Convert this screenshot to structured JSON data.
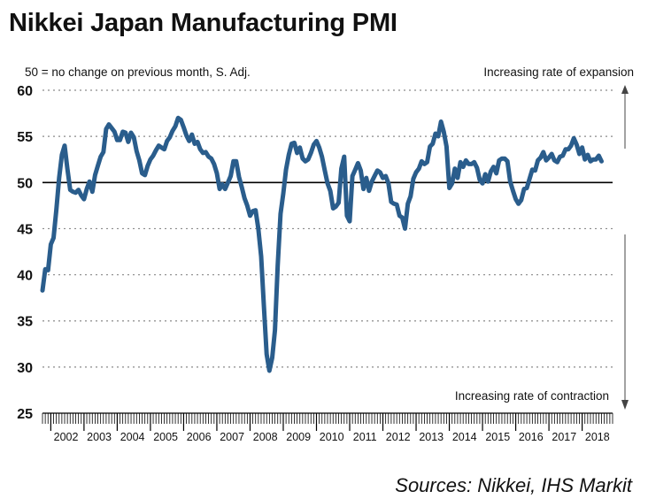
{
  "title": "Nikkei Japan Manufacturing PMI",
  "source": "Sources: Nikkei, IHS Markit",
  "colors": {
    "series": "#2a5d8c",
    "grid": "#8a8a8a",
    "axis": "#000000"
  },
  "chart_data": {
    "type": "line",
    "title": "Nikkei Japan Manufacturing PMI",
    "note": "50 = no change on previous month, S. Adj.",
    "expansion_label": "Increasing rate of expansion",
    "contraction_label": "Increasing rate of contraction",
    "ylim": [
      25,
      60
    ],
    "yticks": [
      25,
      30,
      35,
      40,
      45,
      50,
      55,
      60
    ],
    "reference_line": 50,
    "grid": "horizontal-dotted",
    "x_start": "2001-10",
    "xlim": [
      "2001-10",
      "2018-12"
    ],
    "year_labels": [
      "2002",
      "2003",
      "2004",
      "2005",
      "2006",
      "2007",
      "2008",
      "2009",
      "2010",
      "2011",
      "2012",
      "2013",
      "2014",
      "2015",
      "2016",
      "2017",
      "2018"
    ],
    "series": [
      {
        "values": [
          38.3,
          40.6,
          40.5,
          43.3,
          44.0,
          47.0,
          50.5,
          53.0,
          54.0,
          51.5,
          49.2,
          49.0,
          48.9,
          49.2,
          48.6,
          48.2,
          49.3,
          50.1,
          49.0,
          50.8,
          51.8,
          52.8,
          53.3,
          55.8,
          56.3,
          55.9,
          55.5,
          54.6,
          54.6,
          55.5,
          55.4,
          54.4,
          55.4,
          54.9,
          53.4,
          52.4,
          51.0,
          50.8,
          51.8,
          52.5,
          52.9,
          53.5,
          54.0,
          53.8,
          53.6,
          54.5,
          54.9,
          55.6,
          56.1,
          57.0,
          56.8,
          56.0,
          55.1,
          54.5,
          55.2,
          54.2,
          54.4,
          53.6,
          53.2,
          53.3,
          52.8,
          52.6,
          52.0,
          51.0,
          49.3,
          49.8,
          49.3,
          50.0,
          50.7,
          52.3,
          52.3,
          50.6,
          49.5,
          48.3,
          47.5,
          46.4,
          46.9,
          47.0,
          45.0,
          42.0,
          36.6,
          31.4,
          29.6,
          31.0,
          34.0,
          41.0,
          46.6,
          48.8,
          51.4,
          53.0,
          54.2,
          54.3,
          53.2,
          53.8,
          52.6,
          52.3,
          52.5,
          53.2,
          54.1,
          54.5,
          53.8,
          52.8,
          51.3,
          49.9,
          49.1,
          47.2,
          47.4,
          47.8,
          51.5,
          52.8,
          46.4,
          45.8,
          50.7,
          51.4,
          52.1,
          51.3,
          49.3,
          50.5,
          49.1,
          50.1,
          50.7,
          51.3,
          51.1,
          50.5,
          50.7,
          49.9,
          47.9,
          47.7,
          47.6,
          46.4,
          46.2,
          45.0,
          47.7,
          48.5,
          50.4,
          51.1,
          51.5,
          52.3,
          52.0,
          52.2,
          53.9,
          54.2,
          55.3,
          55.0,
          56.6,
          55.5,
          53.9,
          49.4,
          49.9,
          51.5,
          50.5,
          52.2,
          51.7,
          52.4,
          52.0,
          52.0,
          52.2,
          51.6,
          50.3,
          49.9,
          50.9,
          50.1,
          51.2,
          51.7,
          51.0,
          52.4,
          52.6,
          52.6,
          52.3,
          50.1,
          49.1,
          48.2,
          47.7,
          48.1,
          49.3,
          49.4,
          50.4,
          51.4,
          51.3,
          52.4,
          52.7,
          53.3,
          52.4,
          52.7,
          53.1,
          52.4,
          52.2,
          52.8,
          52.9,
          53.6,
          53.6,
          54.0,
          54.8,
          54.1,
          53.1,
          53.8,
          52.5,
          53.0,
          52.3,
          52.5,
          52.5,
          52.9,
          52.3
        ]
      }
    ]
  }
}
